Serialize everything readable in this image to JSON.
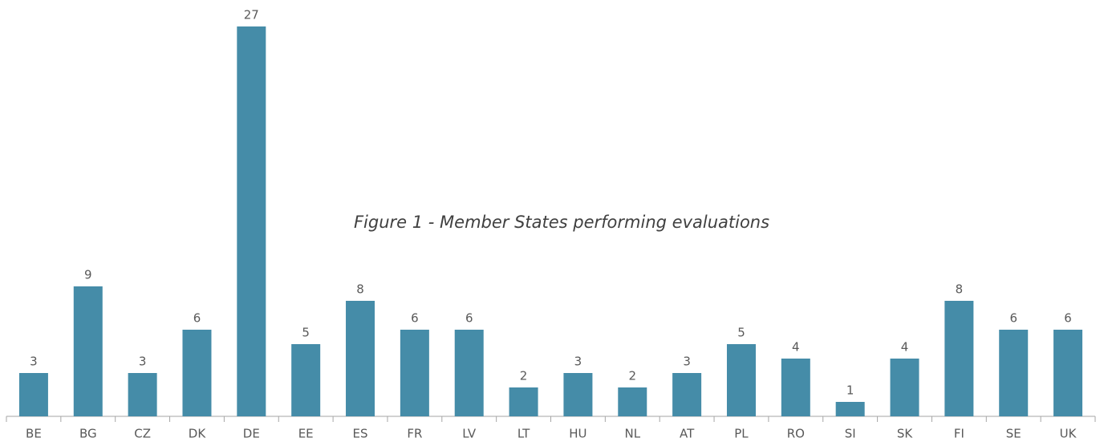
{
  "chart_data": {
    "type": "bar",
    "title": "Figure 1 - Member States performing evaluations",
    "categories": [
      "BE",
      "BG",
      "CZ",
      "DK",
      "DE",
      "EE",
      "ES",
      "FR",
      "LV",
      "LT",
      "HU",
      "NL",
      "AT",
      "PL",
      "RO",
      "SI",
      "SK",
      "FI",
      "SE",
      "UK"
    ],
    "values": [
      3,
      9,
      3,
      6,
      27,
      5,
      8,
      6,
      6,
      2,
      3,
      2,
      3,
      5,
      4,
      1,
      4,
      8,
      6,
      6
    ],
    "color": "#458ca8"
  }
}
